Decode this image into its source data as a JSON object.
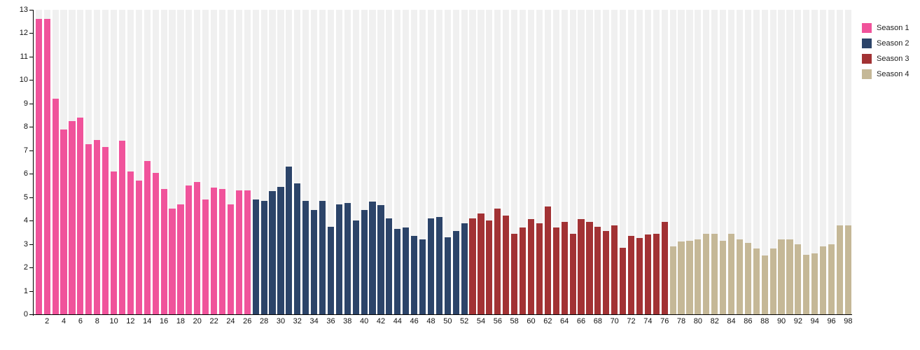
{
  "chart_data": {
    "type": "bar",
    "title": "",
    "xlabel": "",
    "ylabel": "",
    "ylim": [
      0,
      13
    ],
    "grid": false,
    "legend_position": "top-right",
    "background_stripe_color": "#f0f0f0",
    "axis_color": "#000000",
    "tick_label_color": "#111111",
    "yticks": [
      0,
      1,
      2,
      3,
      4,
      5,
      6,
      7,
      8,
      9,
      10,
      11,
      12,
      13
    ],
    "xticks": [
      2,
      4,
      6,
      8,
      10,
      12,
      14,
      16,
      18,
      20,
      22,
      24,
      26,
      28,
      30,
      32,
      34,
      36,
      38,
      40,
      42,
      44,
      46,
      48,
      50,
      52,
      54,
      56,
      58,
      60,
      62,
      64,
      66,
      68,
      70,
      72,
      74,
      76,
      78,
      80,
      82,
      84,
      86,
      88,
      90,
      92,
      94,
      96,
      98
    ],
    "x_is_episode_number": true,
    "total_bars": 98,
    "series": [
      {
        "name": "Season 1",
        "color": "#f0539b",
        "start_x": 1,
        "values": [
          12.6,
          12.6,
          9.2,
          7.9,
          8.25,
          8.4,
          7.25,
          7.45,
          7.15,
          6.1,
          7.4,
          6.1,
          5.7,
          6.55,
          6.05,
          5.35,
          4.5,
          4.7,
          5.5,
          5.65,
          4.9,
          5.4,
          5.35,
          4.7,
          5.3,
          5.3
        ]
      },
      {
        "name": "Season 2",
        "color": "#2c4469",
        "start_x": 27,
        "values": [
          4.9,
          4.85,
          5.25,
          5.45,
          6.3,
          5.6,
          4.85,
          4.45,
          4.85,
          3.75,
          4.7,
          4.75,
          4.0,
          4.45,
          4.8,
          4.65,
          4.1,
          3.65,
          3.7,
          3.35,
          3.2,
          4.1,
          4.15,
          3.3,
          3.55,
          3.9
        ]
      },
      {
        "name": "Season 3",
        "color": "#a23234",
        "start_x": 53,
        "values": [
          4.1,
          4.3,
          4.0,
          4.5,
          4.2,
          3.45,
          3.7,
          4.05,
          3.9,
          4.6,
          3.7,
          3.95,
          3.45,
          4.05,
          3.95,
          3.75,
          3.55,
          3.8,
          2.85,
          3.35,
          3.25,
          3.4,
          3.45,
          3.95
        ]
      },
      {
        "name": "Season 4",
        "color": "#c5b897",
        "start_x": 77,
        "values": [
          2.9,
          3.1,
          3.15,
          3.2,
          3.45,
          3.45,
          3.15,
          3.45,
          3.2,
          3.05,
          2.8,
          2.5,
          2.8,
          3.2,
          3.2,
          3.0,
          2.55,
          2.6,
          2.9,
          3.0,
          3.8,
          3.8
        ]
      }
    ]
  }
}
